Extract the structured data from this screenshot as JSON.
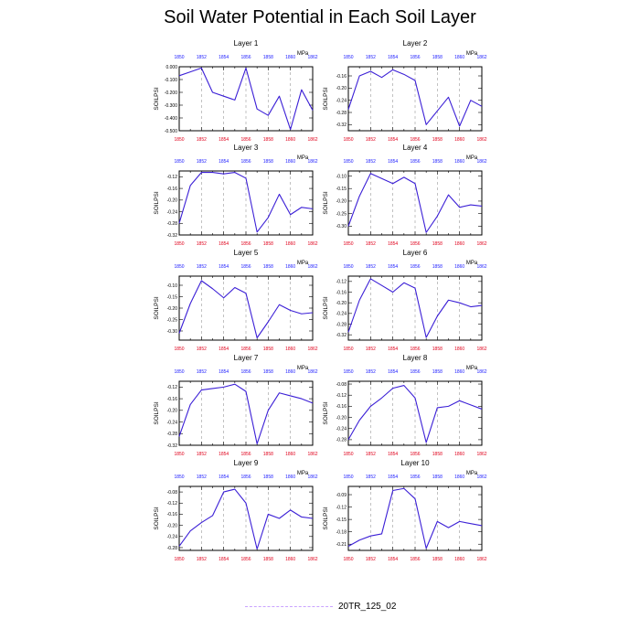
{
  "title": "Soil Water Potential in Each Soil Layer",
  "legend": {
    "label": "20TR_125_02",
    "color": "#c9a3ff"
  },
  "colors": {
    "line": "#3b1fd6",
    "top_ticks": "#1a1aff",
    "bottom_ticks": "#e0001b",
    "grid": "#999999"
  },
  "chart_data": [
    {
      "type": "line",
      "title": "Layer 1",
      "units": "MPa",
      "ylabel": "SOILPSI",
      "xlim": [
        1850,
        1862
      ],
      "x_ticks": [
        1850,
        1852,
        1854,
        1856,
        1858,
        1860,
        1862
      ],
      "y_ticks": [
        0,
        -0.1,
        -0.2,
        -0.3,
        -0.4,
        -0.5
      ],
      "y_tick_labels": [
        "0.000",
        "-0.100",
        "-0.200",
        "-0.300",
        "-0.400",
        "-0.500"
      ],
      "ylim": [
        -0.5,
        0
      ],
      "x": [
        1850,
        1851,
        1852,
        1853,
        1854,
        1855,
        1856,
        1857,
        1858,
        1859,
        1860,
        1861,
        1862
      ],
      "y": [
        -0.07,
        -0.04,
        -0.01,
        -0.2,
        -0.23,
        -0.26,
        -0.01,
        -0.33,
        -0.38,
        -0.23,
        -0.49,
        -0.18,
        -0.34
      ]
    },
    {
      "type": "line",
      "title": "Layer 2",
      "units": "MPa",
      "ylabel": "SOILPSI",
      "xlim": [
        1850,
        1862
      ],
      "x_ticks": [
        1850,
        1852,
        1854,
        1856,
        1858,
        1860,
        1862
      ],
      "y_ticks": [
        -0.16,
        -0.2,
        -0.24,
        -0.28,
        -0.32
      ],
      "y_tick_labels": [
        "-0.16",
        "-0.20",
        "-0.24",
        "-0.28",
        "-0.32"
      ],
      "ylim": [
        -0.34,
        -0.13
      ],
      "x": [
        1850,
        1851,
        1852,
        1853,
        1854,
        1855,
        1856,
        1857,
        1858,
        1859,
        1860,
        1861,
        1862
      ],
      "y": [
        -0.27,
        -0.16,
        -0.145,
        -0.165,
        -0.14,
        -0.155,
        -0.175,
        -0.32,
        -0.275,
        -0.23,
        -0.325,
        -0.24,
        -0.26
      ]
    },
    {
      "type": "line",
      "title": "Layer 3",
      "units": "MPa",
      "ylabel": "SOILPSI",
      "xlim": [
        1850,
        1862
      ],
      "x_ticks": [
        1850,
        1852,
        1854,
        1856,
        1858,
        1860,
        1862
      ],
      "y_ticks": [
        -0.12,
        -0.16,
        -0.2,
        -0.24,
        -0.28,
        -0.32
      ],
      "y_tick_labels": [
        "-0.12",
        "-0.16",
        "-0.20",
        "-0.24",
        "-0.28",
        "-0.32"
      ],
      "ylim": [
        -0.32,
        -0.1
      ],
      "x": [
        1850,
        1851,
        1852,
        1853,
        1854,
        1855,
        1856,
        1857,
        1858,
        1859,
        1860,
        1861,
        1862
      ],
      "y": [
        -0.28,
        -0.15,
        -0.105,
        -0.105,
        -0.11,
        -0.105,
        -0.125,
        -0.31,
        -0.26,
        -0.18,
        -0.25,
        -0.225,
        -0.23
      ]
    },
    {
      "type": "line",
      "title": "Layer 4",
      "units": "MPa",
      "ylabel": "SOILPSI",
      "xlim": [
        1850,
        1862
      ],
      "x_ticks": [
        1850,
        1852,
        1854,
        1856,
        1858,
        1860,
        1862
      ],
      "y_ticks": [
        -0.1,
        -0.15,
        -0.2,
        -0.25,
        -0.3
      ],
      "y_tick_labels": [
        "-0.10",
        "-0.15",
        "-0.20",
        "-0.25",
        "-0.30"
      ],
      "ylim": [
        -0.335,
        -0.08
      ],
      "x": [
        1850,
        1851,
        1852,
        1853,
        1854,
        1855,
        1856,
        1857,
        1858,
        1859,
        1860,
        1861,
        1862
      ],
      "y": [
        -0.3,
        -0.18,
        -0.09,
        -0.11,
        -0.13,
        -0.105,
        -0.13,
        -0.325,
        -0.26,
        -0.175,
        -0.225,
        -0.215,
        -0.22
      ]
    },
    {
      "type": "line",
      "title": "Layer 5",
      "units": "MPa",
      "ylabel": "SOILPSI",
      "xlim": [
        1850,
        1862
      ],
      "x_ticks": [
        1850,
        1852,
        1854,
        1856,
        1858,
        1860,
        1862
      ],
      "y_ticks": [
        -0.1,
        -0.15,
        -0.2,
        -0.25,
        -0.3
      ],
      "y_tick_labels": [
        "-0.10",
        "-0.15",
        "-0.20",
        "-0.25",
        "-0.30"
      ],
      "ylim": [
        -0.34,
        -0.06
      ],
      "x": [
        1850,
        1851,
        1852,
        1853,
        1854,
        1855,
        1856,
        1857,
        1858,
        1859,
        1860,
        1861,
        1862
      ],
      "y": [
        -0.31,
        -0.18,
        -0.08,
        -0.115,
        -0.155,
        -0.11,
        -0.135,
        -0.33,
        -0.26,
        -0.185,
        -0.21,
        -0.225,
        -0.22
      ]
    },
    {
      "type": "line",
      "title": "Layer 6",
      "units": "MPa",
      "ylabel": "SOILPSI",
      "xlim": [
        1850,
        1862
      ],
      "x_ticks": [
        1850,
        1852,
        1854,
        1856,
        1858,
        1860,
        1862
      ],
      "y_ticks": [
        -0.12,
        -0.16,
        -0.2,
        -0.24,
        -0.28,
        -0.32
      ],
      "y_tick_labels": [
        "-0.12",
        "-0.16",
        "-0.20",
        "-0.24",
        "-0.28",
        "-0.32"
      ],
      "ylim": [
        -0.34,
        -0.1
      ],
      "x": [
        1850,
        1851,
        1852,
        1853,
        1854,
        1855,
        1856,
        1857,
        1858,
        1859,
        1860,
        1861,
        1862
      ],
      "y": [
        -0.31,
        -0.19,
        -0.11,
        -0.135,
        -0.16,
        -0.125,
        -0.145,
        -0.33,
        -0.25,
        -0.19,
        -0.2,
        -0.215,
        -0.21
      ]
    },
    {
      "type": "line",
      "title": "Layer 7",
      "units": "MPa",
      "ylabel": "SOILPSI",
      "xlim": [
        1850,
        1862
      ],
      "x_ticks": [
        1850,
        1852,
        1854,
        1856,
        1858,
        1860,
        1862
      ],
      "y_ticks": [
        -0.12,
        -0.16,
        -0.2,
        -0.24,
        -0.28,
        -0.32
      ],
      "y_tick_labels": [
        "-0.12",
        "-0.16",
        "-0.20",
        "-0.24",
        "-0.28",
        "-0.32"
      ],
      "ylim": [
        -0.32,
        -0.1
      ],
      "x": [
        1850,
        1851,
        1852,
        1853,
        1854,
        1855,
        1856,
        1857,
        1858,
        1859,
        1860,
        1861,
        1862
      ],
      "y": [
        -0.29,
        -0.18,
        -0.13,
        -0.125,
        -0.12,
        -0.11,
        -0.135,
        -0.315,
        -0.2,
        -0.14,
        -0.15,
        -0.16,
        -0.175
      ]
    },
    {
      "type": "line",
      "title": "Layer 8",
      "units": "MPa",
      "ylabel": "SOILPSI",
      "xlim": [
        1850,
        1862
      ],
      "x_ticks": [
        1850,
        1852,
        1854,
        1856,
        1858,
        1860,
        1862
      ],
      "y_ticks": [
        -0.08,
        -0.12,
        -0.16,
        -0.2,
        -0.24,
        -0.28
      ],
      "y_tick_labels": [
        "-0.08",
        "-0.12",
        "-0.16",
        "-0.20",
        "-0.24",
        "-0.28"
      ],
      "ylim": [
        -0.3,
        -0.07
      ],
      "x": [
        1850,
        1851,
        1852,
        1853,
        1854,
        1855,
        1856,
        1857,
        1858,
        1859,
        1860,
        1861,
        1862
      ],
      "y": [
        -0.28,
        -0.21,
        -0.16,
        -0.13,
        -0.095,
        -0.085,
        -0.13,
        -0.29,
        -0.165,
        -0.16,
        -0.14,
        -0.155,
        -0.17
      ]
    },
    {
      "type": "line",
      "title": "Layer 9",
      "units": "MPa",
      "ylabel": "SOILPSI",
      "xlim": [
        1850,
        1862
      ],
      "x_ticks": [
        1850,
        1852,
        1854,
        1856,
        1858,
        1860,
        1862
      ],
      "y_ticks": [
        -0.08,
        -0.12,
        -0.16,
        -0.2,
        -0.24,
        -0.28
      ],
      "y_tick_labels": [
        "-0.08",
        "-0.12",
        "-0.16",
        "-0.20",
        "-0.24",
        "-0.28"
      ],
      "ylim": [
        -0.29,
        -0.06
      ],
      "x": [
        1850,
        1851,
        1852,
        1853,
        1854,
        1855,
        1856,
        1857,
        1858,
        1859,
        1860,
        1861,
        1862
      ],
      "y": [
        -0.275,
        -0.22,
        -0.19,
        -0.165,
        -0.08,
        -0.07,
        -0.12,
        -0.285,
        -0.16,
        -0.175,
        -0.145,
        -0.17,
        -0.175
      ]
    },
    {
      "type": "line",
      "title": "Layer 10",
      "units": "MPa",
      "ylabel": "SOILPSI",
      "xlim": [
        1850,
        1862
      ],
      "x_ticks": [
        1850,
        1852,
        1854,
        1856,
        1858,
        1860,
        1862
      ],
      "y_ticks": [
        -0.09,
        -0.12,
        -0.15,
        -0.18,
        -0.21
      ],
      "y_tick_labels": [
        "-0.09",
        "-0.12",
        "-0.15",
        "-0.18",
        "-0.21"
      ],
      "ylim": [
        -0.225,
        -0.07
      ],
      "x": [
        1850,
        1851,
        1852,
        1853,
        1854,
        1855,
        1856,
        1857,
        1858,
        1859,
        1860,
        1861,
        1862
      ],
      "y": [
        -0.215,
        -0.2,
        -0.19,
        -0.185,
        -0.08,
        -0.075,
        -0.1,
        -0.22,
        -0.155,
        -0.17,
        -0.155,
        -0.16,
        -0.165
      ]
    }
  ]
}
